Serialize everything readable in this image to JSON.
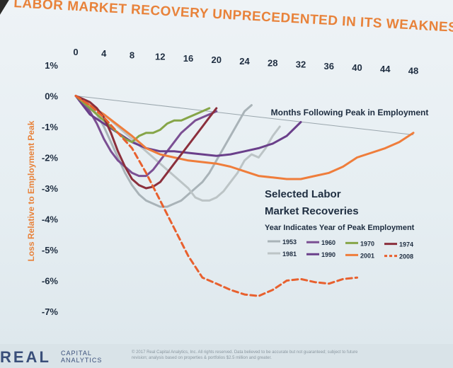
{
  "slide": {
    "title": "LABOR MARKET RECOVERY UNPRECEDENTED IN ITS WEAKNESS",
    "brand_main": "REAL",
    "brand_sub_1": "CAPITAL",
    "brand_sub_2": "ANALYTICS",
    "copyright": "© 2017 Real Capital Analytics, Inc. All rights reserved. Data believed to be accurate but not guaranteed; subject to future revision; analysis based on properties & portfolios $2.5 million and greater."
  },
  "colors": {
    "title": "#e8823a",
    "axis_text": "#1e2d40",
    "ylabel": "#e8823a",
    "series": {
      "1953": "#a9b3b8",
      "1981": "#bcc4c6",
      "1960": "#7b4f93",
      "1990": "#6a3f8a",
      "1970": "#86a548",
      "2001": "#ef7d3b",
      "1974": "#8b2f3c",
      "2008": "#e8602e"
    }
  },
  "chart_data": {
    "type": "line",
    "title": "Selected Labor Market Recoveries",
    "subtitle": "Year Indicates Year of Peak Employment",
    "xlabel": "Months Following Peak in Employment",
    "ylabel": "Loss Relative to Employment Peak",
    "xlim": [
      0,
      48
    ],
    "ylim": [
      -7,
      1
    ],
    "x_ticks": [
      "0",
      "4",
      "8",
      "12",
      "16",
      "20",
      "24",
      "28",
      "32",
      "36",
      "40",
      "44",
      "48"
    ],
    "y_ticks": [
      "1%",
      "0%",
      "-1%",
      "-2%",
      "-3%",
      "-4%",
      "-5%",
      "-6%",
      "-7%"
    ],
    "legend_position": "bottom-right",
    "series": [
      {
        "name": "1953",
        "dashed": false,
        "x": [
          0,
          1,
          2,
          3,
          4,
          5,
          6,
          7,
          8,
          9,
          10,
          11,
          12,
          13,
          14,
          15,
          16,
          17,
          18,
          19,
          20,
          21,
          22,
          23,
          24,
          25
        ],
        "y": [
          0,
          -0.1,
          -0.3,
          -0.6,
          -1.0,
          -1.5,
          -2.0,
          -2.5,
          -2.9,
          -3.2,
          -3.4,
          -3.5,
          -3.6,
          -3.6,
          -3.5,
          -3.4,
          -3.2,
          -3.0,
          -2.8,
          -2.5,
          -2.1,
          -1.7,
          -1.3,
          -0.9,
          -0.5,
          -0.3
        ]
      },
      {
        "name": "1981",
        "dashed": false,
        "x": [
          0,
          2,
          4,
          6,
          8,
          10,
          12,
          14,
          16,
          17,
          18,
          19,
          20,
          21,
          22,
          23,
          24,
          25,
          26,
          27,
          28,
          29
        ],
        "y": [
          0,
          -0.3,
          -0.6,
          -1.0,
          -1.4,
          -1.8,
          -2.2,
          -2.6,
          -3.0,
          -3.3,
          -3.4,
          -3.4,
          -3.3,
          -3.1,
          -2.8,
          -2.5,
          -2.1,
          -1.9,
          -2.0,
          -1.7,
          -1.3,
          -1.0
        ]
      },
      {
        "name": "1960",
        "dashed": false,
        "x": [
          0,
          1,
          2,
          3,
          4,
          5,
          6,
          7,
          8,
          9,
          10,
          11,
          12,
          13,
          14,
          15,
          16,
          17,
          18,
          19,
          20
        ],
        "y": [
          0,
          -0.2,
          -0.5,
          -0.9,
          -1.4,
          -1.8,
          -2.1,
          -2.3,
          -2.5,
          -2.6,
          -2.6,
          -2.4,
          -2.1,
          -1.8,
          -1.5,
          -1.2,
          -1.0,
          -0.8,
          -0.7,
          -0.6,
          -0.5
        ]
      },
      {
        "name": "1990",
        "dashed": false,
        "x": [
          0,
          2,
          4,
          6,
          8,
          10,
          12,
          14,
          16,
          18,
          20,
          22,
          24,
          26,
          28,
          30,
          32
        ],
        "y": [
          0,
          -0.6,
          -0.9,
          -1.2,
          -1.5,
          -1.7,
          -1.8,
          -1.8,
          -1.85,
          -1.9,
          -1.95,
          -1.9,
          -1.8,
          -1.7,
          -1.55,
          -1.3,
          -0.85
        ]
      },
      {
        "name": "1970",
        "dashed": false,
        "x": [
          0,
          1,
          2,
          3,
          4,
          5,
          6,
          7,
          8,
          9,
          10,
          11,
          12,
          13,
          14,
          15,
          16,
          17,
          18,
          19
        ],
        "y": [
          0,
          -0.2,
          -0.4,
          -0.6,
          -0.8,
          -1.0,
          -1.2,
          -1.4,
          -1.5,
          -1.3,
          -1.2,
          -1.2,
          -1.1,
          -0.9,
          -0.8,
          -0.8,
          -0.7,
          -0.6,
          -0.5,
          -0.4
        ]
      },
      {
        "name": "2001",
        "dashed": false,
        "x": [
          0,
          4,
          8,
          10,
          12,
          14,
          16,
          18,
          20,
          22,
          24,
          26,
          28,
          30,
          32,
          34,
          36,
          38,
          40,
          42,
          44,
          46,
          48
        ],
        "y": [
          0,
          -0.6,
          -1.3,
          -1.7,
          -1.9,
          -2.0,
          -2.1,
          -2.15,
          -2.2,
          -2.3,
          -2.45,
          -2.6,
          -2.65,
          -2.7,
          -2.7,
          -2.6,
          -2.5,
          -2.3,
          -2.0,
          -1.85,
          -1.7,
          -1.5,
          -1.2
        ]
      },
      {
        "name": "1974",
        "dashed": false,
        "x": [
          0,
          1,
          2,
          3,
          4,
          5,
          6,
          7,
          8,
          9,
          10,
          11,
          12,
          13,
          14,
          15,
          16,
          17,
          18,
          19,
          20
        ],
        "y": [
          0,
          -0.1,
          -0.2,
          -0.4,
          -0.7,
          -1.2,
          -1.8,
          -2.3,
          -2.7,
          -2.9,
          -3.0,
          -2.95,
          -2.8,
          -2.5,
          -2.2,
          -1.9,
          -1.6,
          -1.3,
          -1.0,
          -0.7,
          -0.4
        ]
      },
      {
        "name": "2008",
        "dashed": true,
        "x": [
          0,
          2,
          4,
          6,
          8,
          10,
          12,
          14,
          16,
          18,
          20,
          22,
          24,
          26,
          28,
          30,
          32,
          34,
          36,
          38,
          40
        ],
        "y": [
          0,
          -0.3,
          -0.7,
          -1.2,
          -1.7,
          -2.5,
          -3.4,
          -4.3,
          -5.2,
          -5.9,
          -6.1,
          -6.3,
          -6.45,
          -6.5,
          -6.3,
          -6.0,
          -5.95,
          -6.05,
          -6.1,
          -5.95,
          -5.9
        ]
      }
    ]
  }
}
